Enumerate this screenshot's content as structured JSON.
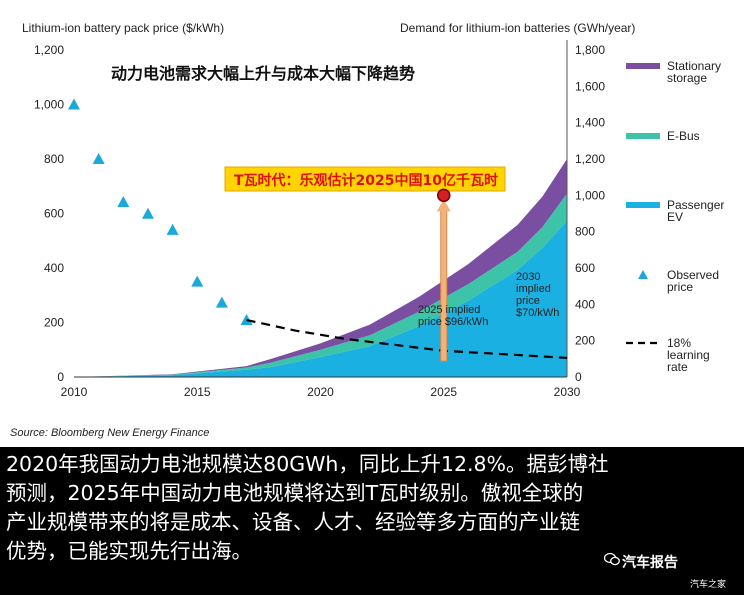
{
  "chart_data": {
    "type": "area",
    "title": "动力电池需求大幅上升与成本大幅下降趋势",
    "ylabel_left": "Lithium-ion battery pack price ($/kWh)",
    "ylabel_right": "Demand for lithium-ion batteries (GWh/year)",
    "x_ticks": [
      "2010",
      "2015",
      "2020",
      "2025",
      "2030"
    ],
    "x_range": [
      2010,
      2030
    ],
    "y_left_range": [
      0,
      1200
    ],
    "y_left_ticks": [
      "0",
      "200",
      "400",
      "600",
      "800",
      "1,000",
      "1,200"
    ],
    "y_right_range": [
      0,
      1800
    ],
    "y_right_ticks": [
      "0",
      "200",
      "400",
      "600",
      "800",
      "1,000",
      "1,200",
      "1,400",
      "1,600",
      "1,800"
    ],
    "demand_years": [
      2010,
      2014,
      2017,
      2018,
      2020,
      2022,
      2024,
      2026,
      2028,
      2029,
      2030
    ],
    "series": [
      {
        "name": "Stationary storage",
        "color": "#7a4ea0",
        "values": [
          0,
          2,
          8,
          20,
          35,
          58,
          82,
          110,
          148,
          168,
          190
        ]
      },
      {
        "name": "E-Bus",
        "color": "#3cc3a8",
        "values": [
          0,
          3,
          12,
          25,
          40,
          60,
          80,
          92,
          100,
          115,
          150
        ]
      },
      {
        "name": "Passenger EV",
        "color": "#1bb0e2",
        "values": [
          0,
          10,
          40,
          55,
          110,
          170,
          280,
          420,
          590,
          710,
          860
        ]
      }
    ],
    "observed_price": {
      "name": "Observed price",
      "color": "#1aa9d9",
      "points": [
        [
          2010,
          1000
        ],
        [
          2011,
          800
        ],
        [
          2012,
          642
        ],
        [
          2013,
          599
        ],
        [
          2014,
          540
        ],
        [
          2015,
          350
        ],
        [
          2016,
          273
        ],
        [
          2017,
          209
        ]
      ]
    },
    "learning_rate": {
      "name": "18% learning rate",
      "points": [
        [
          2017,
          209
        ],
        [
          2019,
          170
        ],
        [
          2021,
          140
        ],
        [
          2023,
          118
        ],
        [
          2025,
          96
        ],
        [
          2027,
          86
        ],
        [
          2030,
          70
        ]
      ]
    },
    "annotations": {
      "implied_2025": "2025 implied price $96/kWh",
      "implied_2030": "2030 implied price $70/kWh",
      "banner": "T瓦时代：乐观估计2025中国10亿千瓦时",
      "marker_year": 2025,
      "marker_gwh": 1000
    },
    "legend": [
      "Stationary storage",
      "E-Bus",
      "Passenger EV",
      "Observed price",
      "18% learning rate"
    ],
    "legend_position": "right",
    "source": "Source: Bloomberg New Energy Finance",
    "grid": false
  },
  "caption": {
    "lines": [
      "2020年我国动力电池规模达80GWh，同比上升12.8%。据彭博社",
      "预测，2025年中国动力电池规模将达到T瓦时级别。傲视全球的",
      "产业规模带来的将是成本、设备、人才、经验等多方面的产业链",
      "优势，已能实现先行出海。"
    ]
  },
  "watermark": {
    "main": "汽车报告",
    "sub": "汽车之家"
  }
}
